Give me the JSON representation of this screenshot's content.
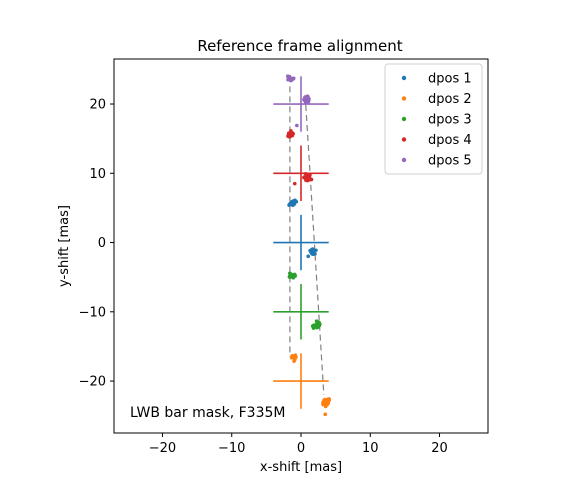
{
  "chart_data": {
    "type": "scatter",
    "title": "Reference frame alignment",
    "xlabel": "x-shift [mas]",
    "ylabel": "y-shift [mas]",
    "xlim": [
      -27,
      27
    ],
    "ylim": [
      -27.5,
      26.5
    ],
    "xticks": [
      -20,
      -10,
      0,
      10,
      20
    ],
    "yticks": [
      -20,
      -10,
      0,
      10,
      20
    ],
    "xtick_labels": [
      "−20",
      "−10",
      "0",
      "10",
      "20"
    ],
    "ytick_labels": [
      "−20",
      "−10",
      "0",
      "10",
      "20"
    ],
    "grid": false,
    "legend_position": "top-right",
    "annotation": "LWB bar mask, F335M",
    "crosshair_half_size": 4,
    "series": [
      {
        "name": "dpos 1",
        "color": "#1f77b4",
        "reference": [
          0,
          0
        ],
        "clusters": [
          {
            "center": [
              -1.2,
              5.7
            ],
            "n": 18,
            "spread": 0.5
          },
          {
            "center": [
              1.6,
              -1.4
            ],
            "n": 22,
            "spread": 0.5
          }
        ]
      },
      {
        "name": "dpos 2",
        "color": "#ff7f0e",
        "reference": [
          0,
          -20
        ],
        "clusters": [
          {
            "center": [
              -1.0,
              -16.7
            ],
            "n": 12,
            "spread": 0.4
          },
          {
            "center": [
              3.6,
              -23.0
            ],
            "n": 24,
            "spread": 0.6
          }
        ],
        "outliers": [
          [
            3.5,
            -24.8
          ]
        ]
      },
      {
        "name": "dpos 3",
        "color": "#2ca02c",
        "reference": [
          0,
          -10
        ],
        "clusters": [
          {
            "center": [
              -1.3,
              -4.8
            ],
            "n": 20,
            "spread": 0.5
          },
          {
            "center": [
              2.3,
              -11.9
            ],
            "n": 24,
            "spread": 0.6
          }
        ]
      },
      {
        "name": "dpos 4",
        "color": "#d62728",
        "reference": [
          0,
          10
        ],
        "clusters": [
          {
            "center": [
              -1.5,
              15.6
            ],
            "n": 16,
            "spread": 0.5
          },
          {
            "center": [
              1.0,
              9.4
            ],
            "n": 24,
            "spread": 0.5
          }
        ],
        "outliers": [
          [
            -0.9,
            8.5
          ]
        ]
      },
      {
        "name": "dpos 5",
        "color": "#9467bd",
        "reference": [
          0,
          20
        ],
        "clusters": [
          {
            "center": [
              -1.5,
              23.6
            ],
            "n": 16,
            "spread": 0.5
          },
          {
            "center": [
              0.8,
              20.7
            ],
            "n": 20,
            "spread": 0.5
          }
        ],
        "outliers": [
          [
            -0.6,
            16.9
          ]
        ]
      }
    ],
    "guide_lines": [
      {
        "from": [
          -1.6,
          24.0
        ],
        "to": [
          -1.6,
          -16.5
        ]
      },
      {
        "from": [
          0.6,
          21.3
        ],
        "to": [
          3.3,
          -22.0
        ]
      }
    ]
  }
}
